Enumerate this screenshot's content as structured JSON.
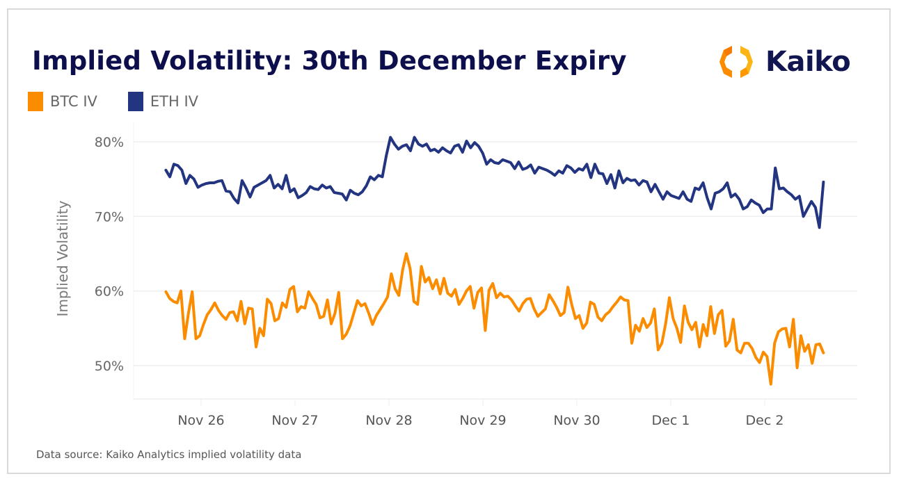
{
  "header": {
    "title": "Implied Volatility: 30th December Expiry",
    "logo_text": "Kaiko"
  },
  "footer": {
    "source": "Data source: Kaiko Analytics implied volatility data"
  },
  "colors": {
    "btc": "#fb8c00",
    "eth": "#233580",
    "title": "#0d0f4d",
    "grid": "#efefef"
  },
  "chart_data": {
    "type": "line",
    "title": "Implied Volatility: 30th December Expiry",
    "xlabel": "",
    "ylabel": "Implied Volatility",
    "ylim": [
      45,
      82
    ],
    "y_ticks": [
      50,
      60,
      70,
      80
    ],
    "y_tick_labels": [
      "50%",
      "60%",
      "70%",
      "80%"
    ],
    "x_tick_labels": [
      "Nov 26",
      "Nov 27",
      "Nov 28",
      "Nov 29",
      "Nov 30",
      "Dec 1",
      "Dec 2"
    ],
    "x_start": "Nov 25 15:00",
    "x_interval": "1 hour",
    "x_range_days": [
      -0.375,
      6.625
    ],
    "grid": true,
    "legend": "top-left",
    "series": [
      {
        "name": "BTC IV",
        "color": "#fb8c00",
        "values": [
          59.9,
          59.0,
          58.6,
          58.4,
          60.0,
          53.6,
          57.0,
          59.9,
          53.6,
          54.0,
          55.5,
          56.8,
          57.5,
          58.4,
          57.4,
          56.7,
          56.2,
          57.1,
          57.2,
          56.0,
          58.6,
          55.6,
          57.7,
          57.6,
          52.5,
          55.0,
          54.0,
          58.9,
          58.3,
          56.0,
          56.3,
          58.4,
          57.8,
          60.2,
          60.6,
          57.2,
          57.9,
          57.7,
          59.9,
          59.0,
          58.2,
          56.4,
          56.6,
          58.8,
          55.6,
          57.0,
          59.8,
          53.6,
          54.2,
          55.3,
          57.0,
          58.7,
          58.0,
          58.3,
          57.0,
          55.5,
          56.7,
          57.5,
          58.3,
          59.2,
          62.3,
          60.3,
          59.4,
          62.8,
          65.0,
          63.0,
          58.6,
          58.2,
          63.3,
          61.2,
          61.8,
          60.3,
          61.5,
          59.6,
          61.7,
          59.7,
          59.3,
          60.2,
          58.2,
          59.0,
          60.0,
          60.6,
          57.7,
          59.8,
          60.4,
          54.7,
          60.1,
          61.0,
          59.1,
          59.7,
          59.2,
          59.3,
          58.8,
          58.0,
          57.3,
          58.3,
          58.9,
          59.0,
          57.6,
          56.6,
          57.1,
          57.6,
          59.5,
          58.7,
          57.8,
          56.7,
          57.1,
          60.5,
          58.2,
          56.3,
          56.7,
          55.0,
          55.7,
          58.5,
          58.2,
          56.5,
          56.0,
          56.8,
          57.2,
          57.9,
          58.5,
          59.2,
          58.8,
          58.7,
          53.0,
          55.4,
          54.6,
          56.3,
          55.1,
          55.7,
          57.6,
          52.1,
          53.0,
          55.6,
          59.1,
          56.3,
          55.0,
          53.1,
          58.0,
          55.8,
          54.8,
          55.8,
          52.5,
          55.5,
          54.0,
          57.9,
          54.3,
          56.8,
          57.4,
          52.6,
          53.3,
          56.2,
          52.1,
          51.7,
          53.0,
          53.0,
          52.3,
          51.1,
          50.4,
          51.8,
          51.2,
          47.5,
          53.0,
          54.5,
          54.9,
          55.0,
          52.5,
          56.2,
          49.7,
          54.0,
          51.9,
          52.8,
          50.3,
          52.8,
          52.9,
          51.7
        ]
      },
      {
        "name": "ETH IV",
        "color": "#233580",
        "values": [
          76.2,
          75.3,
          77.0,
          76.8,
          76.2,
          74.4,
          75.5,
          75.0,
          73.9,
          74.2,
          74.4,
          74.5,
          74.5,
          74.7,
          74.8,
          73.4,
          73.3,
          72.4,
          71.8,
          74.8,
          73.8,
          72.6,
          73.9,
          74.2,
          74.5,
          74.8,
          75.5,
          73.8,
          74.3,
          73.7,
          75.5,
          73.3,
          73.7,
          72.5,
          72.8,
          73.2,
          74.0,
          73.7,
          73.6,
          74.2,
          73.8,
          74.0,
          73.2,
          73.1,
          73.0,
          72.2,
          73.5,
          73.1,
          72.9,
          73.3,
          74.1,
          75.3,
          74.9,
          75.5,
          75.3,
          78.2,
          80.6,
          79.7,
          79.0,
          79.4,
          79.6,
          78.8,
          80.6,
          79.7,
          79.4,
          79.7,
          78.8,
          79.0,
          78.6,
          79.2,
          78.8,
          78.5,
          79.4,
          79.6,
          78.6,
          80.1,
          79.2,
          79.9,
          79.4,
          78.5,
          77.0,
          77.6,
          77.2,
          77.1,
          77.6,
          77.4,
          77.2,
          76.4,
          77.3,
          76.3,
          76.5,
          76.9,
          75.8,
          76.6,
          76.4,
          76.2,
          75.9,
          75.5,
          76.1,
          75.8,
          76.8,
          76.5,
          75.9,
          76.4,
          76.2,
          77.0,
          75.2,
          77.0,
          75.8,
          75.7,
          74.4,
          75.6,
          73.8,
          76.1,
          74.5,
          75.1,
          74.8,
          74.9,
          74.2,
          74.8,
          74.6,
          73.3,
          74.3,
          73.3,
          72.3,
          73.3,
          72.8,
          72.6,
          72.4,
          73.3,
          72.3,
          72.0,
          73.8,
          73.6,
          74.5,
          72.5,
          71.0,
          73.1,
          73.3,
          73.7,
          74.5,
          72.6,
          73.0,
          72.3,
          71.0,
          71.3,
          72.2,
          71.8,
          71.5,
          70.5,
          71.0,
          71.0,
          76.5,
          73.7,
          73.8,
          73.3,
          72.9,
          72.3,
          72.7,
          70.0,
          71.0,
          72.0,
          71.2,
          68.5,
          74.6
        ]
      }
    ]
  }
}
